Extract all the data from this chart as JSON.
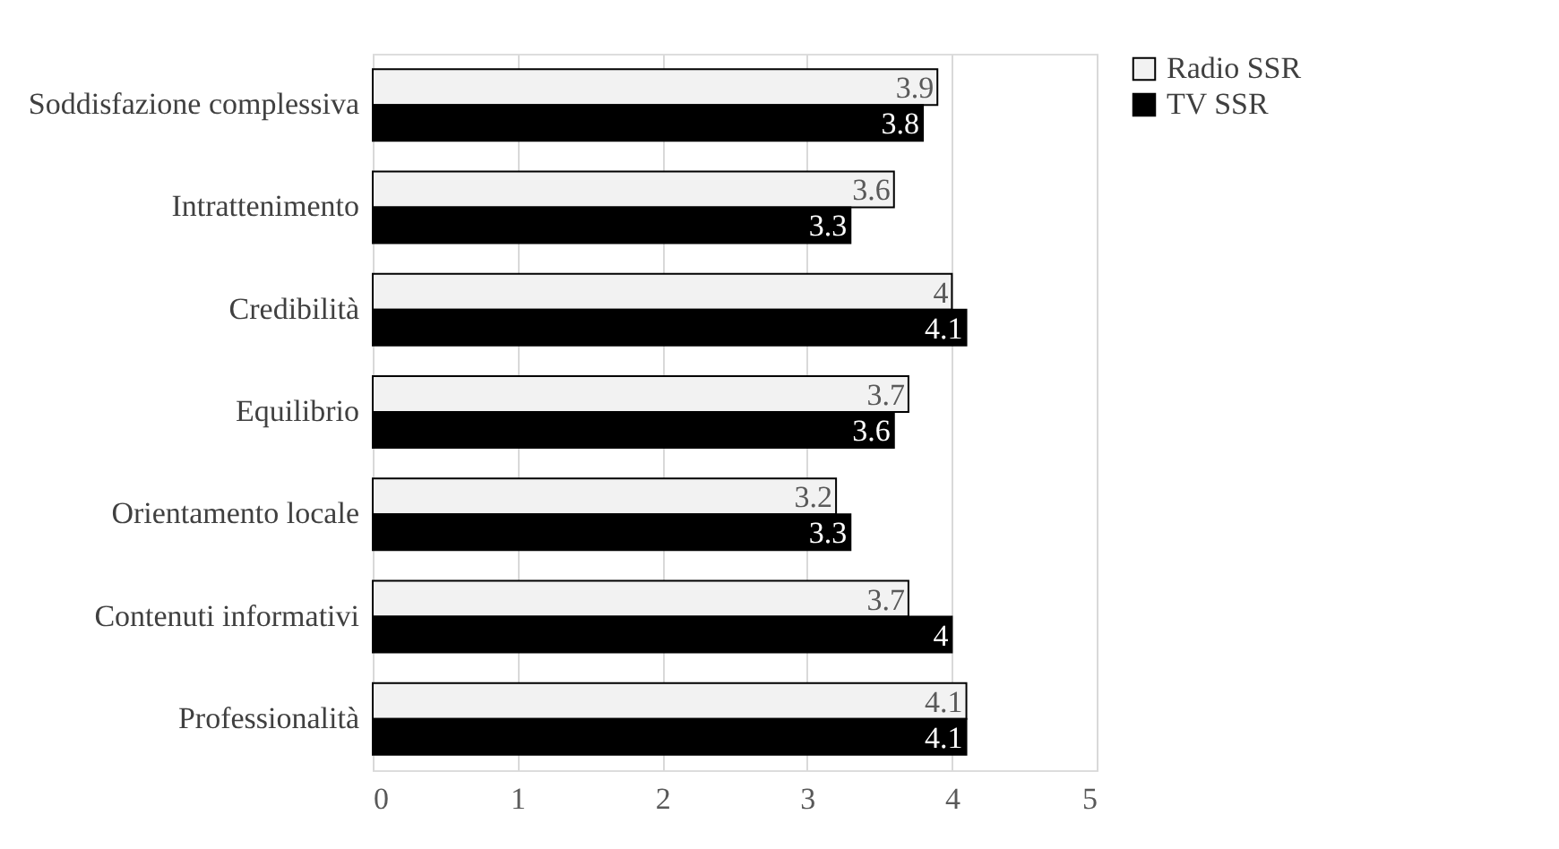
{
  "chart_data": {
    "type": "bar",
    "orientation": "horizontal",
    "categories": [
      "Soddisfazione complessiva",
      "Intrattenimento",
      "Credibilità",
      "Equilibrio",
      "Orientamento locale",
      "Contenuti informativi",
      "Professionalità"
    ],
    "series": [
      {
        "name": "Radio SSR",
        "color": "#f2f2f2",
        "values": [
          3.9,
          3.6,
          4,
          3.7,
          3.2,
          3.7,
          4.1
        ]
      },
      {
        "name": "TV SSR",
        "color": "#000000",
        "values": [
          3.8,
          3.3,
          4.1,
          3.6,
          3.3,
          4,
          4.1
        ]
      }
    ],
    "xlim": [
      0,
      5
    ],
    "xticks": [
      0,
      1,
      2,
      3,
      4,
      5
    ],
    "grid": "x",
    "legend": "right",
    "data_labels": true
  }
}
